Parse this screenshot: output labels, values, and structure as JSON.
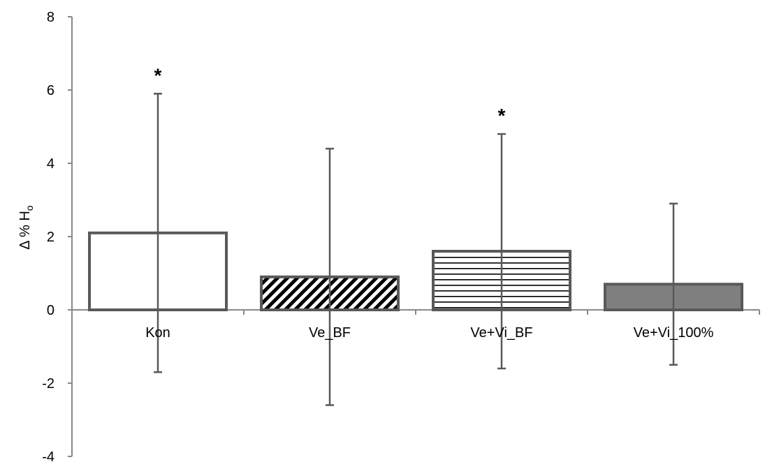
{
  "chart_data": {
    "type": "bar",
    "categories": [
      "Kon",
      "Ve_BF",
      "Ve+Vi_BF",
      "Ve+Vi_100%"
    ],
    "values": [
      2.1,
      0.9,
      1.6,
      0.7
    ],
    "error_low": [
      -1.7,
      -2.6,
      -1.6,
      -1.5
    ],
    "error_high": [
      5.9,
      4.4,
      4.8,
      2.9
    ],
    "fills": [
      "white",
      "diagonal-hatch",
      "horizontal-hatch",
      "solid-gray"
    ],
    "significance": [
      "*",
      "",
      "*",
      ""
    ],
    "ylabel_symbol": "Δ % H",
    "ylabel_subscript": "o",
    "ylim": [
      -4,
      8
    ],
    "yticks": [
      -4,
      -2,
      0,
      2,
      4,
      6,
      8
    ],
    "grid": false,
    "colors": {
      "bar_stroke": "#595959",
      "axis": "#888888",
      "error": "#595959",
      "solid_fill": "#7f7f7f"
    }
  }
}
